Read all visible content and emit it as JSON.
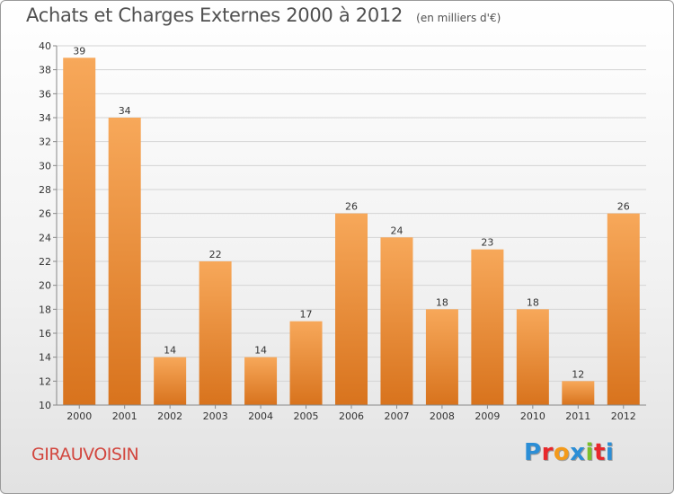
{
  "header": {
    "title": "Achats et Charges Externes 2000 à 2012",
    "subtitle": "(en milliers d'€)"
  },
  "footer": {
    "place": "GIRAUVOISIN",
    "logo_letters": [
      "P",
      "r",
      "o",
      "x",
      "i",
      "t",
      "i"
    ],
    "logo_colors": [
      "#2b8ed6",
      "#e8282b",
      "#f39a1b",
      "#2b8ed6",
      "#7bbf2a",
      "#e8282b",
      "#2b8ed6"
    ]
  },
  "colors": {
    "bar_light": "#f7a85a",
    "bar_dark": "#d8731d",
    "grid": "#d4d4d4",
    "axis": "#888888",
    "text": "#333333",
    "place": "#d2473f"
  },
  "chart_data": {
    "type": "bar",
    "title": "Achats et Charges Externes 2000 à 2012",
    "subtitle": "(en milliers d'€)",
    "categories": [
      "2000",
      "2001",
      "2002",
      "2003",
      "2004",
      "2005",
      "2006",
      "2007",
      "2008",
      "2009",
      "2010",
      "2011",
      "2012"
    ],
    "values": [
      39,
      34,
      14,
      22,
      14,
      17,
      26,
      24,
      18,
      23,
      18,
      12,
      26
    ],
    "ylim": [
      10,
      40
    ],
    "yticks": [
      10,
      12,
      14,
      16,
      18,
      20,
      22,
      24,
      26,
      28,
      30,
      32,
      34,
      36,
      38,
      40
    ],
    "grid": true,
    "data_labels": true
  }
}
